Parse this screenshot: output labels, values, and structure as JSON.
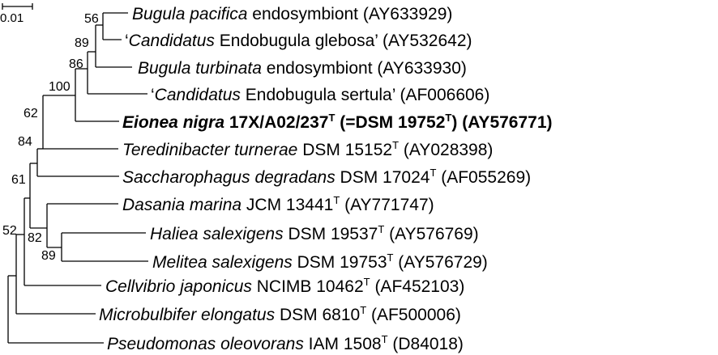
{
  "scale_bar": {
    "label": "0.01"
  },
  "taxa": [
    {
      "id": "bugula-pacifica",
      "bold": false,
      "parts": [
        {
          "text": "Bugula pacifica",
          "italic": true
        },
        {
          "text": " endosymbiont (AY633929)"
        }
      ]
    },
    {
      "id": "endobugula-glebosa",
      "bold": false,
      "parts": [
        {
          "text": "‘"
        },
        {
          "text": "Candidatus",
          "italic": true
        },
        {
          "text": " Endobugula glebosa’ (AY532642)"
        }
      ]
    },
    {
      "id": "bugula-turbinata",
      "bold": false,
      "parts": [
        {
          "text": "Bugula turbinata",
          "italic": true
        },
        {
          "text": " endosymbiont (AY633930)"
        }
      ]
    },
    {
      "id": "endobugula-sertula",
      "bold": false,
      "parts": [
        {
          "text": "‘"
        },
        {
          "text": "Candidatus",
          "italic": true
        },
        {
          "text": " Endobugula sertula’ (AF006606)"
        }
      ]
    },
    {
      "id": "eionea-nigra",
      "bold": true,
      "parts": [
        {
          "text": "Eionea nigra",
          "italic": true
        },
        {
          "text": " 17X/A02/237"
        },
        {
          "text": "T",
          "sup": true
        },
        {
          "text": " (=DSM 19752"
        },
        {
          "text": "T",
          "sup": true
        },
        {
          "text": ") (AY576771)"
        }
      ]
    },
    {
      "id": "teredinibacter-turnerae",
      "bold": false,
      "parts": [
        {
          "text": "Teredinibacter turnerae",
          "italic": true
        },
        {
          "text": " DSM 15152"
        },
        {
          "text": "T",
          "sup": true
        },
        {
          "text": " (AY028398)"
        }
      ]
    },
    {
      "id": "saccharophagus-degradans",
      "bold": false,
      "parts": [
        {
          "text": "Saccharophagus degradans",
          "italic": true
        },
        {
          "text": " DSM 17024"
        },
        {
          "text": "T",
          "sup": true
        },
        {
          "text": " (AF055269)"
        }
      ]
    },
    {
      "id": "dasania-marina",
      "bold": false,
      "parts": [
        {
          "text": "Dasania marina",
          "italic": true
        },
        {
          "text": " JCM 13441"
        },
        {
          "text": "T",
          "sup": true
        },
        {
          "text": " (AY771747)"
        }
      ]
    },
    {
      "id": "haliea-salexigens",
      "bold": false,
      "parts": [
        {
          "text": "Haliea salexigens",
          "italic": true
        },
        {
          "text": " DSM 19537"
        },
        {
          "text": "T",
          "sup": true
        },
        {
          "text": " (AY576769)"
        }
      ]
    },
    {
      "id": "melitea-salexigens",
      "bold": false,
      "parts": [
        {
          "text": "Melitea salexigens",
          "italic": true
        },
        {
          "text": " DSM 19753"
        },
        {
          "text": "T",
          "sup": true
        },
        {
          "text": " (AY576729)"
        }
      ]
    },
    {
      "id": "cellvibrio-japonicus",
      "bold": false,
      "parts": [
        {
          "text": "Cellvibrio japonicus",
          "italic": true
        },
        {
          "text": " NCIMB 10462"
        },
        {
          "text": "T",
          "sup": true
        },
        {
          "text": " (AF452103)"
        }
      ]
    },
    {
      "id": "microbulbifer-elongatus",
      "bold": false,
      "parts": [
        {
          "text": "Microbulbifer elongatus",
          "italic": true
        },
        {
          "text": " DSM 6810"
        },
        {
          "text": "T",
          "sup": true
        },
        {
          "text": " (AF500006)"
        }
      ]
    },
    {
      "id": "pseudomonas-oleovorans",
      "bold": false,
      "parts": [
        {
          "text": "Pseudomonas oleovorans",
          "italic": true
        },
        {
          "text": " IAM 1508"
        },
        {
          "text": "T",
          "sup": true
        },
        {
          "text": " (D84018)"
        }
      ]
    }
  ],
  "bootstrap_values": [
    {
      "id": "node-pacifica-glebosa",
      "value": "56"
    },
    {
      "id": "node-turbinata",
      "value": "89"
    },
    {
      "id": "node-endobugula",
      "value": "86"
    },
    {
      "id": "node-eionea",
      "value": "100"
    },
    {
      "id": "node-teredinibacter",
      "value": "62"
    },
    {
      "id": "node-saccharophagus",
      "value": "84"
    },
    {
      "id": "node-upper",
      "value": "61"
    },
    {
      "id": "node-haliea-melitea",
      "value": "89"
    },
    {
      "id": "node-dasania",
      "value": "82"
    },
    {
      "id": "node-cellvibrio",
      "value": "52"
    }
  ]
}
